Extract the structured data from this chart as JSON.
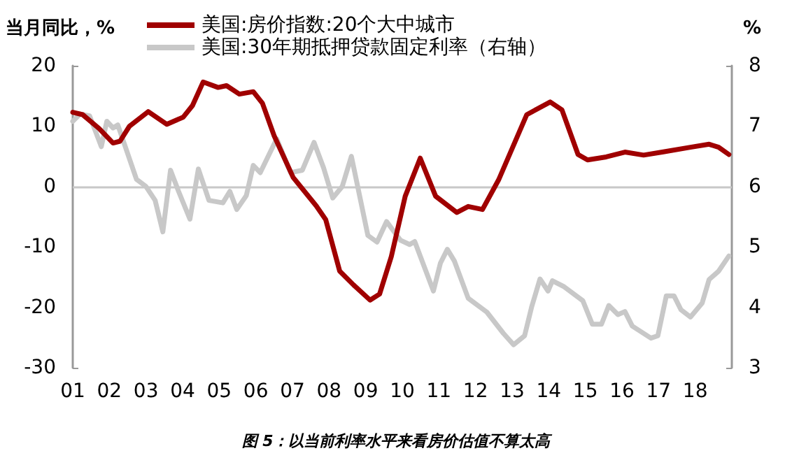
{
  "chart_data": {
    "type": "line",
    "ylabel": "当月同比，%",
    "y2label": "%",
    "annotations": [
      "图 5：以当前利率水平来看房价估值不算太高"
    ],
    "xlim": [
      2001,
      2019
    ],
    "xticks": [
      {
        "value": 2001,
        "label": "01"
      },
      {
        "value": 2002,
        "label": "02"
      },
      {
        "value": 2003,
        "label": "03"
      },
      {
        "value": 2004,
        "label": "04"
      },
      {
        "value": 2005,
        "label": "05"
      },
      {
        "value": 2006,
        "label": "06"
      },
      {
        "value": 2007,
        "label": "07"
      },
      {
        "value": 2008,
        "label": "08"
      },
      {
        "value": 2009,
        "label": "09"
      },
      {
        "value": 2010,
        "label": "10"
      },
      {
        "value": 2011,
        "label": "11"
      },
      {
        "value": 2012,
        "label": "12"
      },
      {
        "value": 2013,
        "label": "13"
      },
      {
        "value": 2014,
        "label": "14"
      },
      {
        "value": 2015,
        "label": "15"
      },
      {
        "value": 2016,
        "label": "16"
      },
      {
        "value": 2017,
        "label": "17"
      },
      {
        "value": 2018,
        "label": "18"
      }
    ],
    "ylim": [
      -30,
      20
    ],
    "yticks": [
      -30,
      -20,
      -10,
      0,
      10,
      20
    ],
    "y2lim": [
      3,
      8
    ],
    "y2ticks": [
      3,
      4,
      5,
      6,
      7,
      8
    ],
    "ref_lines": [
      {
        "axis": "y",
        "value": 0,
        "color": "#c8c8c8"
      }
    ],
    "grid": false,
    "legend": "top",
    "marker": "none",
    "line_style": "solid",
    "series": [
      {
        "name": "美国:房价指数:20个大中城市",
        "color": "#a00000",
        "x": [
          2001.0,
          2001.27,
          2001.72,
          2002.1,
          2002.29,
          2002.55,
          2003.06,
          2003.57,
          2004.02,
          2004.27,
          2004.56,
          2004.97,
          2005.2,
          2005.55,
          2005.93,
          2006.18,
          2006.5,
          2007.02,
          2007.65,
          2007.91,
          2008.29,
          2008.67,
          2009.12,
          2009.38,
          2009.7,
          2010.08,
          2010.49,
          2010.91,
          2011.49,
          2011.8,
          2012.19,
          2012.63,
          2013.4,
          2014.04,
          2014.36,
          2014.8,
          2015.06,
          2015.57,
          2016.08,
          2016.59,
          2017.1,
          2017.87,
          2018.38,
          2018.64,
          2018.92
        ],
        "values": [
          12.3,
          11.9,
          9.6,
          7.2,
          7.5,
          10.0,
          12.4,
          10.3,
          11.5,
          13.4,
          17.3,
          16.4,
          16.7,
          15.3,
          15.7,
          13.8,
          8.4,
          1.5,
          -3.2,
          -5.5,
          -14.0,
          -16.3,
          -18.8,
          -17.8,
          -11.6,
          -1.6,
          4.7,
          -1.6,
          -4.3,
          -3.3,
          -3.8,
          1.1,
          11.9,
          14.0,
          12.7,
          5.3,
          4.4,
          4.9,
          5.7,
          5.2,
          5.7,
          6.5,
          7.0,
          6.5,
          5.3
        ]
      },
      {
        "name": "美国:30年期抵押贷款固定利率（右轴）",
        "color": "#c8c8c8",
        "axis": "y2",
        "x": [
          2001.0,
          2001.2,
          2001.46,
          2001.78,
          2001.93,
          2002.1,
          2002.23,
          2002.74,
          2003.0,
          2003.25,
          2003.46,
          2003.67,
          2003.89,
          2004.2,
          2004.43,
          2004.72,
          2005.1,
          2005.29,
          2005.48,
          2005.74,
          2005.93,
          2006.12,
          2006.57,
          2006.95,
          2007.27,
          2007.59,
          2007.85,
          2008.1,
          2008.36,
          2008.61,
          2009.06,
          2009.31,
          2009.57,
          2009.95,
          2010.2,
          2010.34,
          2010.85,
          2011.04,
          2011.23,
          2011.42,
          2011.8,
          2012.31,
          2012.76,
          2013.04,
          2013.34,
          2013.53,
          2013.76,
          2013.98,
          2014.1,
          2014.42,
          2014.93,
          2015.19,
          2015.44,
          2015.64,
          2015.89,
          2016.08,
          2016.28,
          2016.79,
          2016.98,
          2017.21,
          2017.42,
          2017.61,
          2017.87,
          2018.19,
          2018.38,
          2018.64,
          2018.92
        ],
        "values": [
          7.08,
          7.2,
          7.17,
          6.66,
          7.08,
          6.97,
          7.02,
          6.12,
          6.0,
          5.77,
          5.25,
          6.27,
          5.92,
          5.46,
          6.29,
          5.77,
          5.73,
          5.92,
          5.62,
          5.85,
          6.35,
          6.23,
          6.79,
          6.23,
          6.27,
          6.73,
          6.31,
          5.81,
          6.0,
          6.5,
          5.19,
          5.08,
          5.42,
          5.11,
          5.04,
          5.09,
          4.27,
          4.73,
          4.96,
          4.77,
          4.15,
          3.92,
          3.57,
          3.38,
          3.53,
          4.0,
          4.47,
          4.27,
          4.44,
          4.34,
          4.11,
          3.72,
          3.72,
          4.03,
          3.88,
          3.93,
          3.69,
          3.49,
          3.53,
          4.19,
          4.19,
          3.96,
          3.84,
          4.07,
          4.46,
          4.6,
          4.85
        ]
      }
    ]
  }
}
